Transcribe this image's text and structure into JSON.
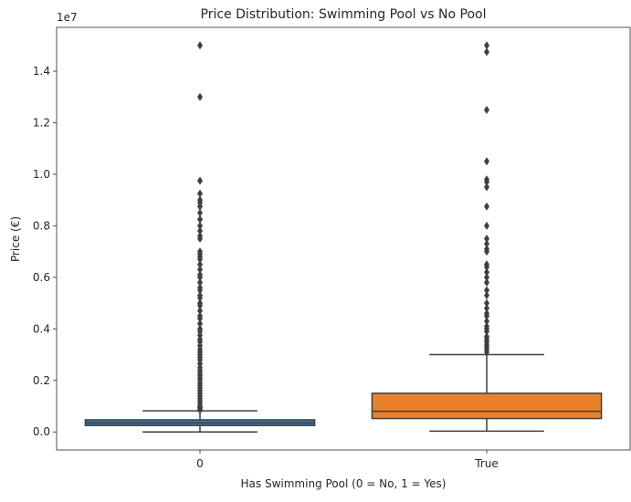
{
  "chart_data": {
    "type": "box",
    "title": "Price Distribution: Swimming Pool vs No Pool",
    "xlabel": "Has Swimming Pool (0 = No, 1 = Yes)",
    "ylabel": "Price (€)",
    "y_offset_label": "1e7",
    "ylim": [
      -700000,
      15700000
    ],
    "yticks": [
      0,
      2000000,
      4000000,
      6000000,
      8000000,
      10000000,
      12000000,
      14000000
    ],
    "ytick_labels": [
      "0.0",
      "0.2",
      "0.4",
      "0.6",
      "0.8",
      "1.0",
      "1.2",
      "1.4"
    ],
    "grid": false,
    "categories": [
      "0",
      "True"
    ],
    "boxes": [
      {
        "category": "0",
        "color": "#3a75a8",
        "whisker_low": 0,
        "q1": 250000,
        "median": 350000,
        "q3": 470000,
        "whisker_high": 820000,
        "outliers": [
          15000000,
          13000000,
          9750000,
          9250000,
          9000000,
          8900000,
          8750000,
          8500000,
          8250000,
          8000000,
          7800000,
          7600000,
          7500000,
          7000000,
          6900000,
          6800000,
          6700000,
          6500000,
          6300000,
          6100000,
          6000000,
          5800000,
          5600000,
          5500000,
          5300000,
          5200000,
          5000000,
          4900000,
          4700000,
          4500000,
          4400000,
          4200000,
          4000000,
          3900000,
          3750000,
          3600000,
          3500000,
          3350000,
          3200000,
          3100000,
          3000000,
          2900000,
          2800000,
          2650000,
          2500000,
          2400000,
          2300000,
          2200000,
          2100000,
          2000000,
          1900000,
          1800000,
          1700000,
          1600000,
          1500000,
          1400000,
          1300000,
          1200000,
          1100000,
          1000000,
          950000,
          900000,
          850000
        ]
      },
      {
        "category": "True",
        "color": "#e8822a",
        "whisker_low": 30000,
        "q1": 520000,
        "median": 800000,
        "q3": 1500000,
        "whisker_high": 3000000,
        "outliers": [
          15000000,
          14750000,
          12500000,
          10500000,
          9800000,
          9700000,
          9500000,
          8750000,
          8000000,
          7500000,
          7300000,
          7100000,
          7000000,
          6500000,
          6400000,
          6200000,
          6000000,
          5800000,
          5500000,
          5300000,
          5000000,
          4800000,
          4600000,
          4500000,
          4300000,
          4100000,
          4000000,
          3900000,
          3700000,
          3600000,
          3500000,
          3400000,
          3300000,
          3200000,
          3100000
        ]
      }
    ]
  }
}
